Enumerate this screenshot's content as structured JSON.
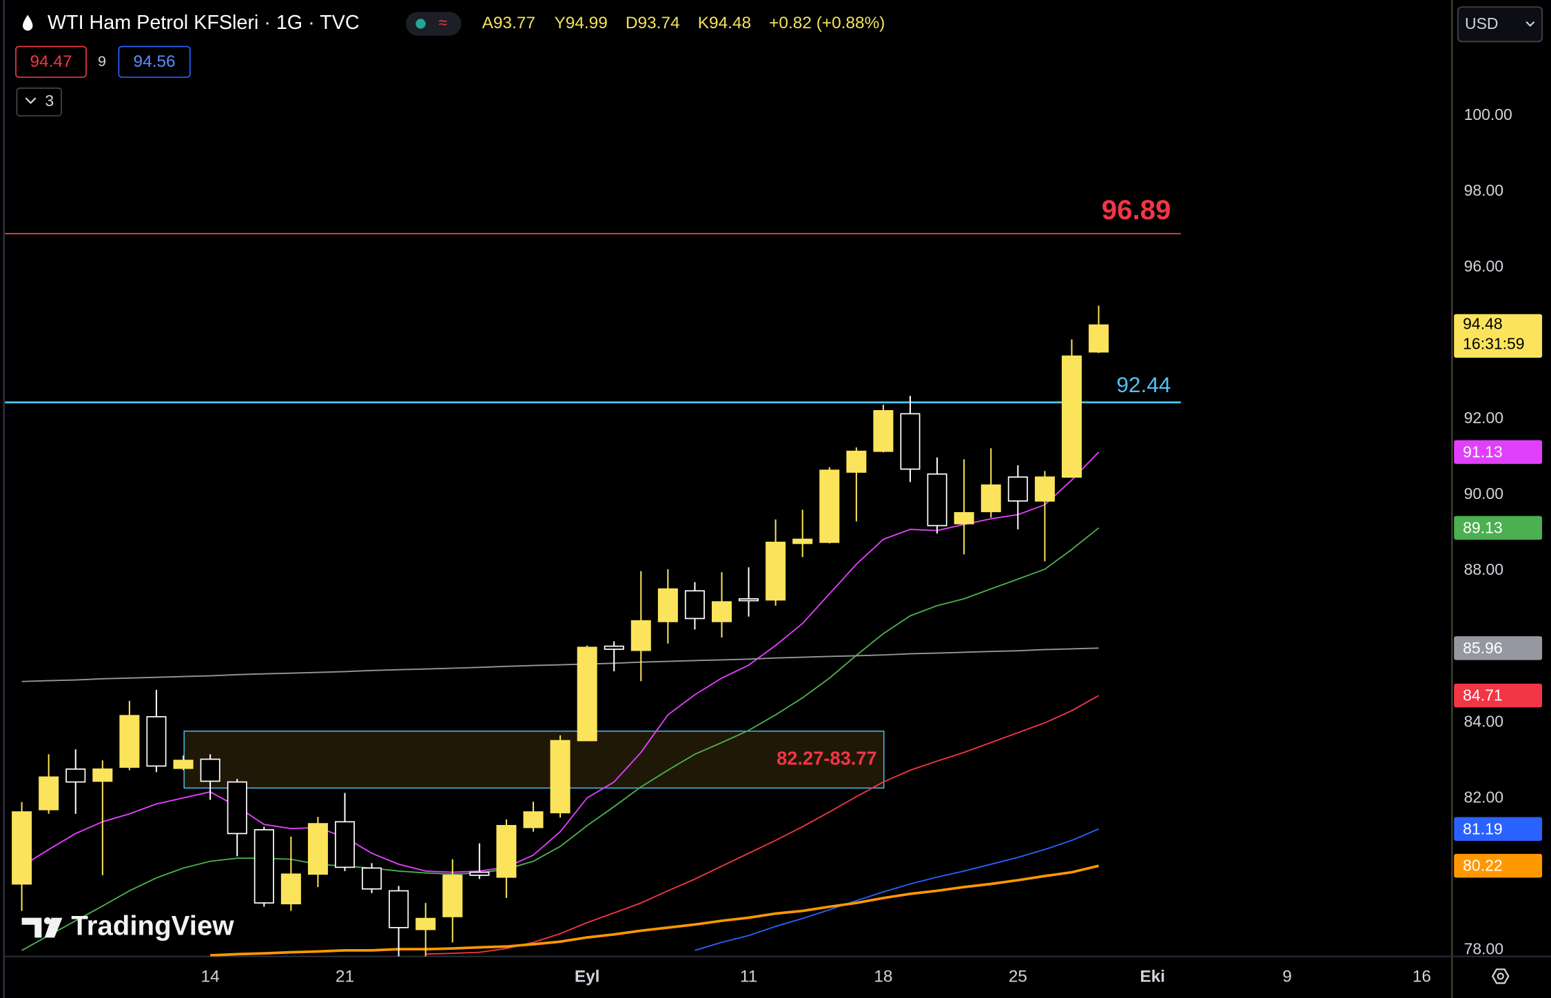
{
  "toolbar": {
    "title": "WTI Ham Petrol KFSleri · 1G · TVC",
    "ohlc": [
      "A93.77",
      "Y94.99",
      "D93.74",
      "K94.48",
      "+0.82 (+0.88%)"
    ],
    "bid": "94.47",
    "spread": "9",
    "ask": "94.56",
    "indicators_count": "3",
    "currency": "USD",
    "countdown": "16:31:59",
    "watermark": "TradingView"
  },
  "chart_data": {
    "type": "candlestick",
    "categories": [
      null,
      null,
      null,
      null,
      null,
      null,
      null,
      "14",
      null,
      null,
      null,
      null,
      "21",
      null,
      null,
      null,
      null,
      null,
      null,
      null,
      null,
      "Eyl",
      null,
      null,
      null,
      null,
      null,
      "11",
      null,
      null,
      null,
      null,
      "18",
      null,
      null,
      null,
      null,
      "25",
      null,
      null,
      null,
      null,
      "Eki",
      null,
      null,
      null,
      null,
      "9",
      null,
      null,
      null,
      null,
      "16",
      null
    ],
    "open": [
      79.74,
      81.7,
      82.77,
      82.45,
      82.82,
      84.15,
      82.79,
      83.03,
      82.43,
      81.17,
      79.22,
      80,
      81.38,
      80.16,
      79.56,
      78.54,
      78.88,
      80.05,
      79.92,
      81.23,
      81.62,
      83.52,
      86.01,
      85.9,
      86.66,
      87.47,
      86.66,
      87.26,
      87.23,
      88.72,
      88.75,
      90.6,
      91.15,
      92.14,
      90.55,
      89.24,
      89.56,
      90.47,
      89.84,
      90.47,
      93.77,
      null,
      null,
      null,
      null,
      null,
      null,
      null,
      null,
      null,
      null,
      null,
      null,
      null
    ],
    "high": [
      81.9,
      83.16,
      83.29,
      83.0,
      84.57,
      84.86,
      83.13,
      83.16,
      82.51,
      81.25,
      80.99,
      81.51,
      82.14,
      80.29,
      79.69,
      79.24,
      80.39,
      80.81,
      81.44,
      81.91,
      83.66,
      86.03,
      86.14,
      87.99,
      88.04,
      87.7,
      87.96,
      88.09,
      89.35,
      89.61,
      90.73,
      91.25,
      92.38,
      92.61,
      90.99,
      90.94,
      91.23,
      90.78,
      90.63,
      94.1,
      94.99,
      null,
      null,
      null,
      null,
      null,
      null,
      null,
      null,
      null,
      null,
      null,
      null,
      null
    ],
    "low": [
      79.03,
      81.59,
      81.59,
      79.97,
      82.74,
      82.69,
      82.74,
      81.96,
      80.47,
      79.14,
      79.03,
      79.66,
      80.08,
      79.5,
      77.83,
      77.83,
      78.2,
      79.87,
      79.37,
      81.12,
      81.49,
      83.52,
      85.35,
      85.09,
      86.08,
      86.45,
      86.24,
      86.79,
      87.08,
      88.36,
      88.72,
      89.3,
      91.12,
      90.34,
      88.98,
      88.43,
      89.4,
      89.09,
      88.25,
      90.47,
      93.74,
      null,
      null,
      null,
      null,
      null,
      null,
      null,
      null,
      null,
      null,
      null,
      null,
      null
    ],
    "close": [
      81.64,
      82.56,
      82.43,
      82.77,
      84.18,
      82.85,
      83.0,
      82.45,
      81.07,
      79.24,
      80.0,
      81.33,
      80.18,
      79.61,
      78.59,
      78.83,
      79.97,
      79.97,
      81.28,
      81.64,
      83.52,
      85.98,
      85.93,
      86.68,
      87.52,
      86.74,
      87.18,
      87.21,
      88.75,
      88.83,
      90.65,
      91.15,
      92.22,
      90.68,
      89.19,
      89.53,
      90.26,
      89.84,
      90.47,
      93.66,
      94.48,
      null,
      null,
      null,
      null,
      null,
      null,
      null,
      null,
      null,
      null,
      null,
      null,
      null
    ],
    "up_color": "#fbe45c",
    "down_color": "#000000",
    "down_border": "#ffffff",
    "series": [
      {
        "color": "#e040fb",
        "values": [
          80.21,
          80.65,
          81.07,
          81.38,
          81.59,
          81.85,
          82.01,
          82.17,
          81.78,
          81.31,
          81.2,
          81.23,
          80.97,
          80.55,
          80.26,
          80.08,
          80.05,
          80.08,
          80.18,
          80.5,
          81.12,
          82.01,
          82.43,
          83.21,
          84.2,
          84.73,
          85.17,
          85.51,
          86.03,
          86.61,
          87.39,
          88.17,
          88.83,
          89.09,
          89.06,
          89.22,
          89.37,
          89.48,
          89.74,
          90.39,
          91.13,
          null,
          null,
          null,
          null,
          null,
          null,
          null,
          null,
          null,
          null,
          null,
          null,
          null
        ]
      },
      {
        "color": "#4caf50",
        "values": [
          77.99,
          78.38,
          78.77,
          79.16,
          79.56,
          79.9,
          80.16,
          80.34,
          80.42,
          80.42,
          80.39,
          80.26,
          80.21,
          80.16,
          80.08,
          80.03,
          80.0,
          80.03,
          80.13,
          80.34,
          80.73,
          81.28,
          81.78,
          82.3,
          82.74,
          83.16,
          83.47,
          83.79,
          84.2,
          84.65,
          85.17,
          85.77,
          86.34,
          86.81,
          87.08,
          87.26,
          87.52,
          87.78,
          88.04,
          88.56,
          89.13,
          null,
          null,
          null,
          null,
          null,
          null,
          null,
          null,
          null,
          null,
          null,
          null,
          null
        ]
      },
      {
        "color": "#9598a1",
        "values": [
          85.08,
          85.1,
          85.12,
          85.15,
          85.17,
          85.19,
          85.21,
          85.23,
          85.26,
          85.28,
          85.3,
          85.32,
          85.34,
          85.37,
          85.39,
          85.41,
          85.43,
          85.45,
          85.48,
          85.5,
          85.52,
          85.54,
          85.56,
          85.59,
          85.61,
          85.63,
          85.65,
          85.67,
          85.7,
          85.72,
          85.74,
          85.76,
          85.78,
          85.81,
          85.83,
          85.85,
          85.87,
          85.89,
          85.92,
          85.94,
          85.96,
          null,
          null,
          null,
          null,
          null,
          null,
          null,
          null,
          null,
          null,
          null,
          null,
          null
        ]
      },
      {
        "color": "#f23645",
        "values": [
          null,
          null,
          null,
          null,
          null,
          null,
          null,
          null,
          null,
          null,
          null,
          null,
          null,
          null,
          null,
          77.89,
          77.91,
          77.94,
          78.04,
          78.2,
          78.43,
          78.72,
          78.98,
          79.24,
          79.56,
          79.87,
          80.21,
          80.55,
          80.89,
          81.25,
          81.64,
          82.04,
          82.43,
          82.74,
          82.98,
          83.21,
          83.47,
          83.73,
          83.99,
          84.31,
          84.71,
          null,
          null,
          null,
          null,
          null,
          null,
          null,
          null,
          null,
          null,
          null,
          null,
          null
        ]
      },
      {
        "color": "#2962ff",
        "values": [
          null,
          null,
          null,
          null,
          null,
          null,
          null,
          null,
          null,
          null,
          null,
          null,
          null,
          null,
          null,
          null,
          null,
          null,
          null,
          null,
          null,
          null,
          null,
          null,
          null,
          77.99,
          78.2,
          78.38,
          78.62,
          78.83,
          79.06,
          79.3,
          79.53,
          79.74,
          79.92,
          80.08,
          80.26,
          80.44,
          80.65,
          80.89,
          81.19,
          null,
          null,
          null,
          null,
          null,
          null,
          null,
          null,
          null,
          null,
          null,
          null,
          null
        ]
      },
      {
        "color": "#ff9800",
        "values": [
          null,
          null,
          null,
          null,
          null,
          null,
          null,
          77.86,
          77.89,
          77.91,
          77.94,
          77.96,
          77.99,
          77.99,
          78.02,
          78.02,
          78.04,
          78.07,
          78.09,
          78.15,
          78.22,
          78.33,
          78.41,
          78.51,
          78.59,
          78.67,
          78.77,
          78.85,
          78.96,
          79.03,
          79.14,
          79.24,
          79.37,
          79.48,
          79.56,
          79.66,
          79.74,
          79.84,
          79.95,
          80.05,
          80.22,
          null,
          null,
          null,
          null,
          null,
          null,
          null,
          null,
          null,
          null,
          null,
          null,
          null
        ]
      }
    ],
    "hlines": [
      {
        "value": 96.89,
        "color": "#f23645"
      },
      {
        "value": 92.44,
        "color": "#4fc3f7"
      }
    ],
    "zone": {
      "low": 82.27,
      "high": 83.77,
      "label": "82.27-83.77",
      "color": "#4fc3f7"
    },
    "ylim": [
      77.83,
      103.05
    ],
    "yticks": [
      {
        "value": 78,
        "label": "78.00"
      },
      {
        "value": 82,
        "label": "82.00"
      },
      {
        "value": 84,
        "label": "84.00"
      },
      {
        "value": 88,
        "label": "88.00"
      },
      {
        "value": 90,
        "label": "90.00"
      },
      {
        "value": 92,
        "label": "92.00"
      },
      {
        "value": 96,
        "label": "96.00"
      },
      {
        "value": 98,
        "label": "98.00"
      },
      {
        "value": 100,
        "label": "100.00"
      }
    ],
    "grid": false
  }
}
